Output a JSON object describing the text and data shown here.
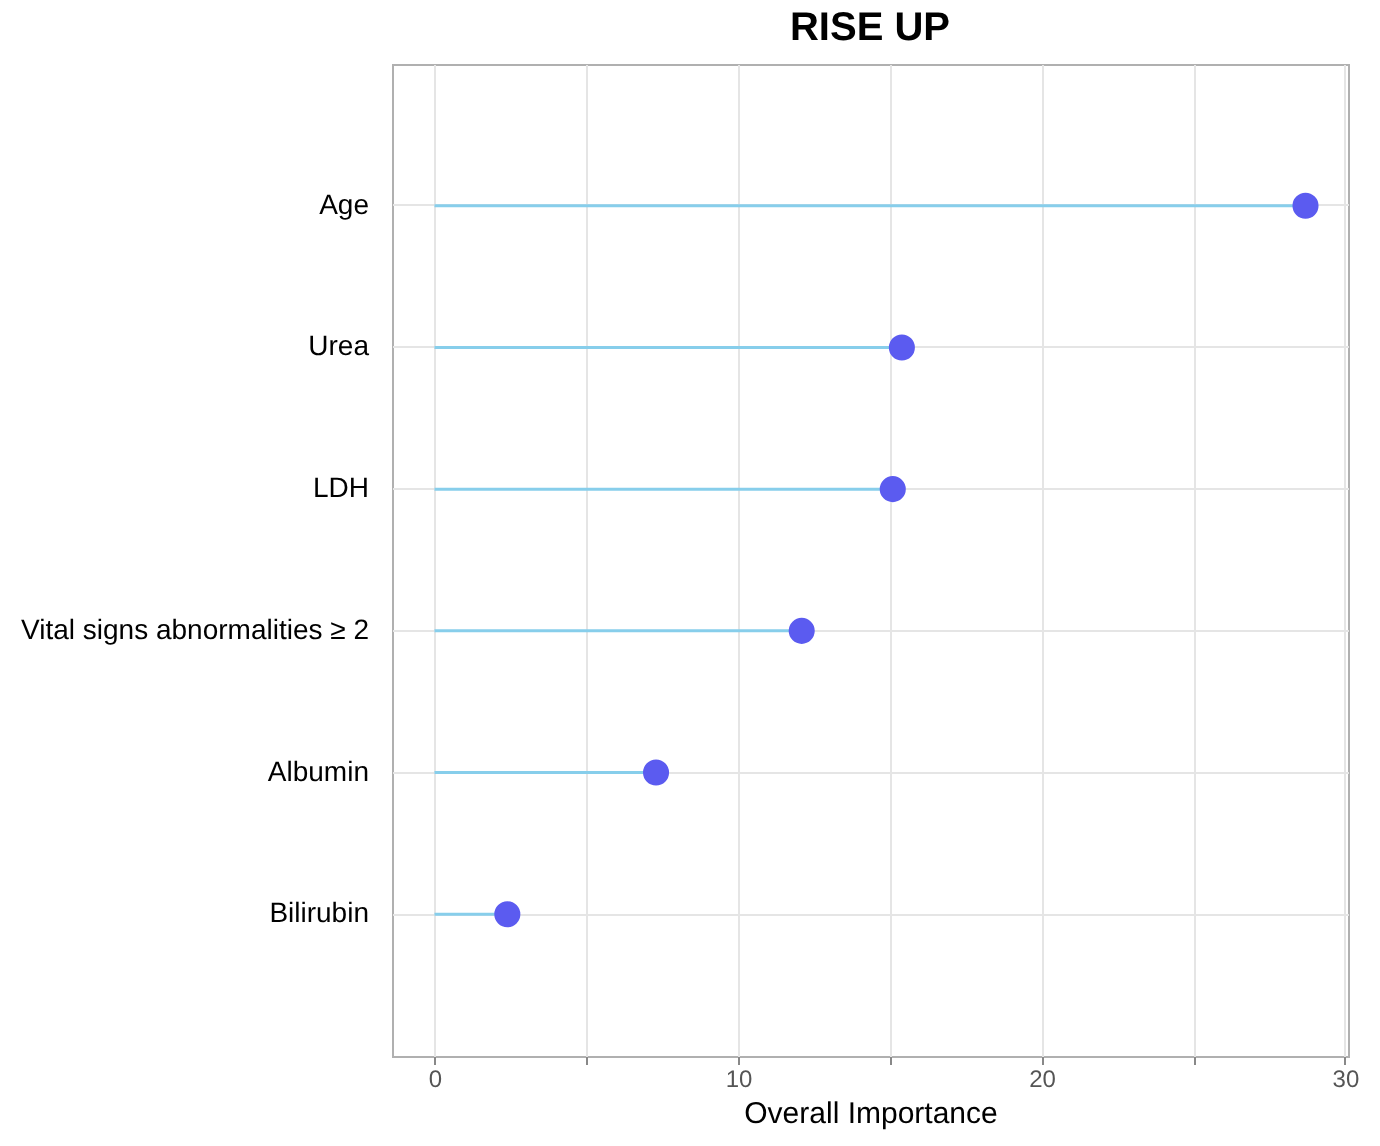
{
  "chart_data": {
    "type": "lollipop",
    "title": "RISE UP",
    "xlabel": "Overall Importance",
    "orientation": "horizontal",
    "categories": [
      "Age",
      "Urea",
      "LDH",
      "Vital signs abnormalities ≥ 2",
      "Albumin",
      "Bilirubin"
    ],
    "series": [
      {
        "color": "#5b5bf0",
        "values": [
          28.7,
          15.4,
          15.1,
          12.1,
          7.3,
          2.4
        ]
      }
    ],
    "xlim": [
      -1.4,
      30.1
    ],
    "xticks": [
      0,
      {
        "value": 5,
        "label": null
      },
      10,
      {
        "value": 15,
        "label": null
      },
      20,
      {
        "value": 25,
        "label": null
      },
      30
    ],
    "grid": true,
    "marker": "circle"
  }
}
